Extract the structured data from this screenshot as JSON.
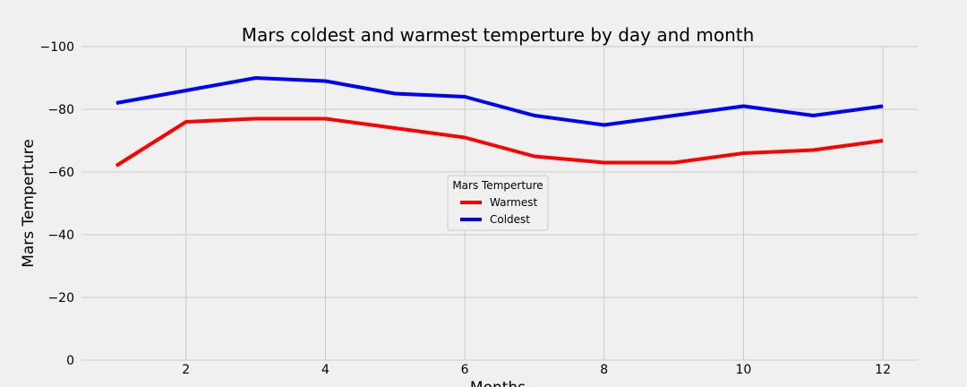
{
  "chart_data": {
    "type": "line",
    "title": "Mars coldest and warmest temperture by day and month",
    "xlabel": "Months",
    "ylabel": "Mars Temperture",
    "x": [
      1,
      2,
      3,
      4,
      5,
      6,
      7,
      8,
      9,
      10,
      11,
      12
    ],
    "xlim": [
      0.5,
      12.5
    ],
    "ylim": [
      0,
      -100
    ],
    "y_inverted": true,
    "x_ticks": [
      2,
      4,
      6,
      8,
      10,
      12
    ],
    "x_tick_labels": [
      "2",
      "4",
      "6",
      "8",
      "10",
      "12"
    ],
    "y_ticks": [
      0,
      -20,
      -40,
      -60,
      -80,
      -100
    ],
    "y_tick_labels": [
      "0",
      "−20",
      "−40",
      "−60",
      "−80",
      "−100"
    ],
    "grid": true,
    "legend": {
      "title": "Mars Temperture",
      "placement": "center"
    },
    "series": [
      {
        "name": "Warmest",
        "color": "#ff0000",
        "values": [
          -62,
          -76,
          -77,
          -77,
          -74,
          -71,
          -65,
          -63,
          -63,
          -66,
          -67,
          -70
        ]
      },
      {
        "name": "Coldest",
        "color": "#0000ff",
        "values": [
          -82,
          -86,
          -90,
          -89,
          -85,
          -84,
          -78,
          -75,
          -78,
          -81,
          -78,
          -81
        ]
      }
    ]
  }
}
